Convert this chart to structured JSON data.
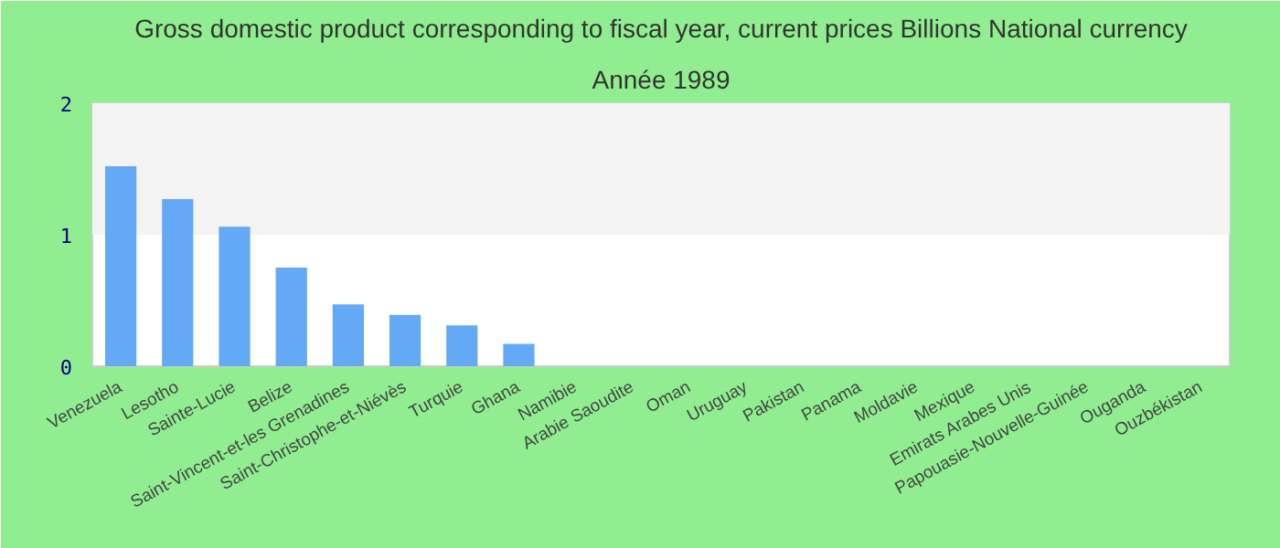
{
  "chart_data": {
    "type": "bar",
    "title": "Gross domestic product corresponding to fiscal year, current prices Billions National currency",
    "subtitle": "Année 1989",
    "categories": [
      "Venezuela",
      "Lesotho",
      "Sainte-Lucie",
      "Belize",
      "Saint-Vincent-et-les Grenadines",
      "Saint-Christophe-et-Niévès",
      "Turquie",
      "Ghana",
      "Namibie",
      "Arabie Saoudite",
      "Oman",
      "Uruguay",
      "Pakistan",
      "Panama",
      "Moldavie",
      "Mexique",
      "Emirats Arabes Unis",
      "Papouasie-Nouvelle-Guinée",
      "Ouganda",
      "Ouzbékistan"
    ],
    "values": [
      1.52,
      1.27,
      1.06,
      0.75,
      0.47,
      0.39,
      0.31,
      0.17,
      0,
      0,
      0,
      0,
      0,
      0,
      0,
      0,
      0,
      0,
      0,
      0
    ],
    "color": "#63a9f5",
    "ylim": [
      0,
      2
    ],
    "yticks": [
      0,
      1,
      2
    ],
    "grid": false,
    "bands": [
      {
        "axis": "y",
        "from": 1,
        "to": 2,
        "color": "#f3f3f3"
      }
    ]
  }
}
